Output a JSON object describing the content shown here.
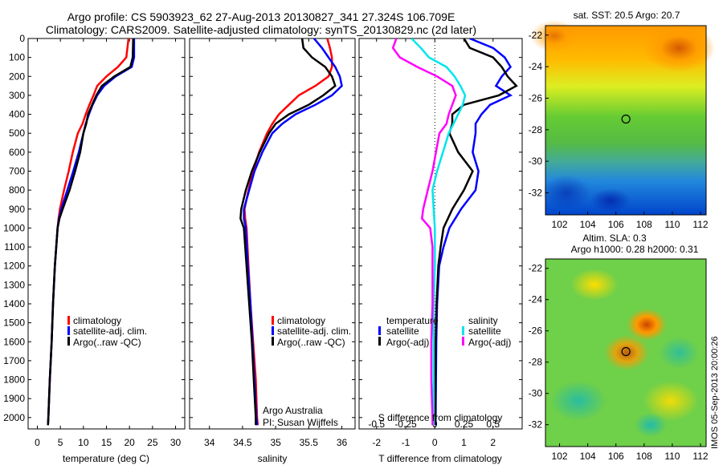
{
  "titles": {
    "line1": "Argo profile: CS 5903923_62 27-Aug-2013 20130827_341 27.324S 106.709E",
    "line2": "Climatology: CARS2009. Satellite-adjusted climatology: synTS_20130829.nc (2d later)"
  },
  "colors": {
    "climatology": "#ff0000",
    "satellite": "#0000ff",
    "argo": "#000000",
    "sat_salinity": "#00e5ee",
    "argo_salinity": "#ff00ff"
  },
  "chart_data": [
    {
      "type": "line",
      "xlabel": "temperature (deg C)",
      "ylabel": "",
      "xlim": [
        -2,
        32
      ],
      "ylim": [
        2060,
        0
      ],
      "xticks": [
        "0",
        "5",
        "10",
        "15",
        "20",
        "25",
        "30"
      ],
      "yticks": [
        "0",
        "100",
        "200",
        "300",
        "400",
        "500",
        "600",
        "700",
        "800",
        "900",
        "1000",
        "1100",
        "1200",
        "1300",
        "1400",
        "1500",
        "1600",
        "1700",
        "1800",
        "1900",
        "2000"
      ],
      "legend": [
        "climatology",
        "satellite-adj. clim.",
        "Argo(..raw -QC)"
      ],
      "series": [
        {
          "name": "climatology",
          "depth": [
            0,
            100,
            150,
            200,
            250,
            300,
            350,
            400,
            450,
            500,
            600,
            700,
            800,
            900,
            950,
            1000,
            1200,
            1400,
            1600,
            1800,
            2000,
            2040
          ],
          "values": [
            19.8,
            19.3,
            17.5,
            15.0,
            13.0,
            12.2,
            11.3,
            10.5,
            9.8,
            8.8,
            7.7,
            6.8,
            5.8,
            4.9,
            4.6,
            4.4,
            3.8,
            3.4,
            3.1,
            2.7,
            2.4,
            2.3
          ]
        },
        {
          "name": "satellite-adj. clim.",
          "depth": [
            0,
            100,
            150,
            200,
            250,
            300,
            350,
            400,
            450,
            500,
            600,
            700,
            800,
            900,
            950,
            1000,
            1200,
            1400,
            1600,
            1800,
            2000,
            2040
          ],
          "values": [
            21.0,
            21.0,
            20.5,
            17.0,
            14.5,
            13.0,
            12.0,
            11.2,
            10.5,
            10.0,
            9.0,
            7.8,
            6.5,
            5.2,
            4.7,
            4.4,
            3.8,
            3.4,
            3.1,
            2.7,
            2.4,
            2.3
          ]
        },
        {
          "name": "Argo(..raw -QC)",
          "depth": [
            0,
            100,
            150,
            200,
            250,
            300,
            350,
            400,
            450,
            500,
            600,
            700,
            800,
            900,
            950,
            1000,
            1200,
            1400,
            1600,
            1800,
            2000,
            2040
          ],
          "values": [
            20.8,
            20.7,
            20.2,
            16.7,
            14.0,
            12.8,
            11.9,
            11.0,
            10.6,
            10.0,
            9.3,
            8.2,
            7.0,
            5.5,
            4.8,
            4.4,
            3.8,
            3.4,
            3.1,
            2.7,
            2.4,
            2.3
          ]
        }
      ]
    },
    {
      "type": "line",
      "xlabel": "salinity",
      "ylabel": "",
      "xlim": [
        33.7,
        36.2
      ],
      "ylim": [
        2060,
        0
      ],
      "xticks": [
        "34",
        "34.5",
        "35",
        "35.5",
        "36"
      ],
      "legend": [
        "climatology",
        "satellite-adj. clim.",
        "Argo(..raw -QC)"
      ],
      "annotation": [
        "Argo Australia",
        "PI: Susan Wijffels"
      ],
      "series": [
        {
          "name": "climatology",
          "depth": [
            0,
            50,
            100,
            150,
            200,
            250,
            300,
            350,
            400,
            450,
            500,
            600,
            700,
            800,
            900,
            950,
            1000,
            1200,
            1400,
            1600,
            1800,
            2000,
            2040
          ],
          "values": [
            35.78,
            35.82,
            35.85,
            35.85,
            35.8,
            35.6,
            35.35,
            35.2,
            35.05,
            34.95,
            34.87,
            34.75,
            34.66,
            34.59,
            34.53,
            34.54,
            34.56,
            34.59,
            34.62,
            34.66,
            34.7,
            34.72,
            34.73
          ]
        },
        {
          "name": "satellite-adj. clim.",
          "depth": [
            0,
            50,
            100,
            150,
            200,
            250,
            300,
            350,
            400,
            450,
            500,
            600,
            700,
            800,
            900,
            950,
            1000,
            1200,
            1400,
            1600,
            1800,
            2000,
            2040
          ],
          "values": [
            35.58,
            35.7,
            35.8,
            35.9,
            35.97,
            36.0,
            35.85,
            35.6,
            35.3,
            35.1,
            34.95,
            34.8,
            34.68,
            34.6,
            34.52,
            34.52,
            34.55,
            34.58,
            34.62,
            34.65,
            34.68,
            34.71,
            34.72
          ]
        },
        {
          "name": "Argo(..raw -QC)",
          "depth": [
            0,
            50,
            100,
            150,
            200,
            250,
            300,
            350,
            400,
            450,
            500,
            600,
            700,
            800,
            900,
            950,
            1000,
            1200,
            1400,
            1600,
            1800,
            2000,
            2040
          ],
          "values": [
            35.4,
            35.42,
            35.55,
            35.75,
            35.85,
            35.9,
            35.72,
            35.5,
            35.2,
            35.0,
            34.9,
            34.76,
            34.64,
            34.55,
            34.48,
            34.47,
            34.52,
            34.56,
            34.6,
            34.64,
            34.67,
            34.7,
            34.7
          ]
        }
      ]
    },
    {
      "type": "line",
      "xlabel": "T difference from climatology",
      "xlabel2": "S difference from climatology",
      "xlim": [
        -2.6,
        3.0
      ],
      "ylim": [
        2060,
        0
      ],
      "xticks_T": [
        "-2",
        "-1",
        "0",
        "1",
        "2"
      ],
      "xticks_S": [
        "-0.5",
        "-0.25",
        "0",
        "0.25",
        "0.5"
      ],
      "legend_groups": [
        {
          "header": "temperature",
          "items": [
            "satellite",
            "Argo(-adj)"
          ]
        },
        {
          "header": "salinity",
          "items": [
            "satellite",
            "Argo(-adj)"
          ]
        }
      ],
      "series": [
        {
          "name": "temperature satellite",
          "depth": [
            0,
            50,
            100,
            150,
            200,
            250,
            300,
            350,
            400,
            450,
            500,
            600,
            700,
            800,
            900,
            1000,
            1100,
            1200,
            1400,
            1600,
            1800,
            2000,
            2040
          ],
          "values": [
            1.2,
            2.0,
            2.4,
            2.6,
            2.3,
            2.1,
            2.6,
            1.9,
            1.6,
            1.4,
            1.4,
            1.3,
            1.5,
            1.4,
            0.9,
            0.5,
            0.3,
            0.15,
            0.08,
            0.05,
            0.04,
            0.03,
            0.03
          ]
        },
        {
          "name": "temperature Argo(-adj)",
          "depth": [
            0,
            50,
            100,
            150,
            200,
            250,
            300,
            350,
            400,
            450,
            500,
            600,
            700,
            800,
            900,
            1000,
            1100,
            1200,
            1400,
            1600,
            1800,
            2000,
            2040
          ],
          "values": [
            1.0,
            1.2,
            2.0,
            2.3,
            2.5,
            2.8,
            2.2,
            1.0,
            0.6,
            0.6,
            0.5,
            0.8,
            1.3,
            1.0,
            0.6,
            0.3,
            0.2,
            0.12,
            0.06,
            0.03,
            0.02,
            0.02,
            0.02
          ]
        },
        {
          "name": "salinity satellite",
          "depth": [
            0,
            50,
            100,
            150,
            200,
            250,
            300,
            350,
            400,
            450,
            500,
            600,
            700,
            800,
            900,
            1000,
            1100,
            1200,
            1400,
            1600,
            1800,
            2000,
            2040
          ],
          "values": [
            -0.2,
            -0.12,
            -0.05,
            0.1,
            0.17,
            0.22,
            0.26,
            0.24,
            0.2,
            0.16,
            0.12,
            0.07,
            0.02,
            -0.02,
            -0.01,
            0.0,
            0.0,
            0.0,
            -0.01,
            -0.01,
            -0.01,
            -0.01,
            -0.01
          ]
        },
        {
          "name": "salinity Argo(-adj)",
          "depth": [
            0,
            50,
            100,
            150,
            200,
            250,
            300,
            350,
            400,
            450,
            500,
            600,
            700,
            800,
            900,
            950,
            1000,
            1100,
            1200,
            1400,
            1600,
            1800,
            2000,
            2040
          ],
          "values": [
            -0.33,
            -0.36,
            -0.3,
            -0.15,
            0.02,
            0.15,
            0.18,
            0.15,
            0.12,
            0.1,
            0.04,
            0.01,
            -0.02,
            -0.06,
            -0.1,
            -0.11,
            -0.04,
            -0.02,
            -0.02,
            -0.02,
            -0.03,
            -0.03,
            -0.02,
            -0.02
          ]
        }
      ]
    }
  ],
  "maps": {
    "sst": {
      "title": "sat. SST: 20.5  Argo: 20.7",
      "xticks": [
        "102",
        "104",
        "106",
        "108",
        "110",
        "112"
      ],
      "yticks": [
        "-22",
        "-24",
        "-26",
        "-28",
        "-30",
        "-32"
      ],
      "marker": {
        "lon": 106.709,
        "lat": -27.324
      }
    },
    "sla": {
      "title1": "Altim. SLA: 0.3",
      "title2": "Argo h1000: 0.28 h2000: 0.31",
      "xticks": [
        "102",
        "104",
        "106",
        "108",
        "110",
        "112"
      ],
      "yticks": [
        "-22",
        "-24",
        "-26",
        "-28",
        "-30",
        "-32"
      ],
      "marker": {
        "lon": 106.709,
        "lat": -27.324
      }
    }
  },
  "footer": {
    "stamp": "IMOS 05-Sep-2013 20:00:26"
  }
}
